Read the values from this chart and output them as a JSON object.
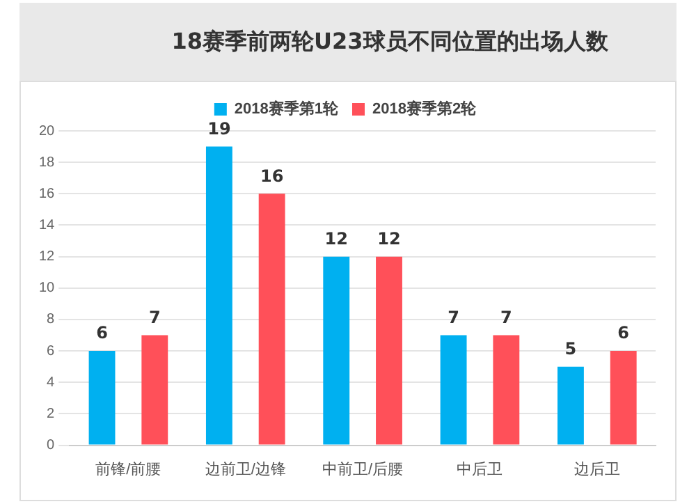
{
  "chart_data": {
    "type": "bar",
    "title": "18赛季前两轮U23球员不同位置的出场人数",
    "categories": [
      "前锋/前腰",
      "边前卫/边锋",
      "中前卫/后腰",
      "中后卫",
      "边后卫"
    ],
    "series": [
      {
        "name": "2018赛季第1轮",
        "color": "#00b0f0",
        "values": [
          6,
          19,
          12,
          7,
          5
        ]
      },
      {
        "name": "2018赛季第2轮",
        "color": "#ff5059",
        "values": [
          7,
          16,
          12,
          7,
          6
        ]
      }
    ],
    "ylim": [
      0,
      20
    ],
    "yticks": [
      0,
      2,
      4,
      6,
      8,
      10,
      12,
      14,
      16,
      18,
      20
    ],
    "grid": "y",
    "legend": "top",
    "data_labels": true
  }
}
